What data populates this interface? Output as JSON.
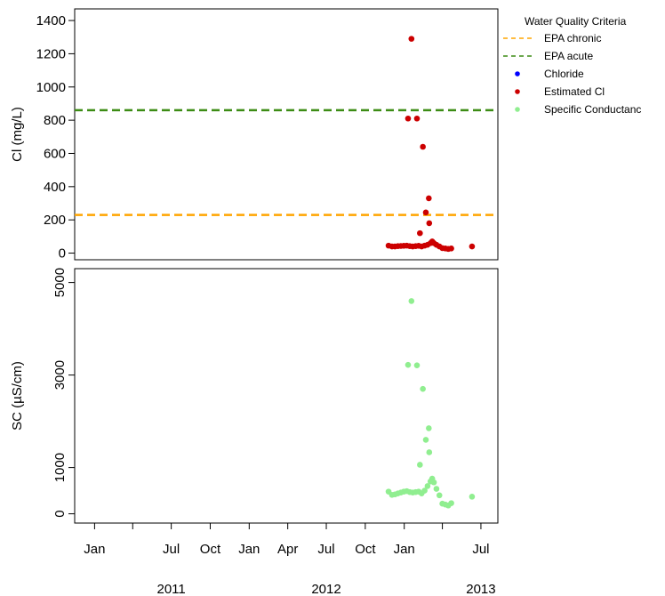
{
  "chart_data": [
    {
      "type": "scatter",
      "ylabel": "Cl (mg/L)",
      "ylim": [
        -40,
        1470
      ],
      "yticks": [
        0,
        200,
        400,
        600,
        800,
        1000,
        1200,
        1400
      ],
      "reference_lines": [
        {
          "name": "EPA chronic",
          "value": 230,
          "color": "#FFA500",
          "style": "dashed"
        },
        {
          "name": "EPA acute",
          "value": 860,
          "color": "#3C8C14",
          "style": "dashed"
        }
      ],
      "series": [
        {
          "name": "Estimated Cl",
          "color": "#CC0000",
          "points": [
            [
              "2012-11-25",
              45
            ],
            [
              "2012-12-03",
              40
            ],
            [
              "2012-12-10",
              40
            ],
            [
              "2012-12-17",
              42
            ],
            [
              "2012-12-24",
              43
            ],
            [
              "2012-12-31",
              44
            ],
            [
              "2013-01-07",
              45
            ],
            [
              "2013-01-14",
              42
            ],
            [
              "2013-01-21",
              40
            ],
            [
              "2013-01-28",
              42
            ],
            [
              "2013-02-04",
              44
            ],
            [
              "2013-02-11",
              40
            ],
            [
              "2013-02-18",
              45
            ],
            [
              "2013-02-25",
              50
            ],
            [
              "2013-03-04",
              60
            ],
            [
              "2013-03-08",
              70
            ],
            [
              "2013-03-12",
              60
            ],
            [
              "2013-03-18",
              50
            ],
            [
              "2013-03-25",
              40
            ],
            [
              "2013-04-01",
              30
            ],
            [
              "2013-04-08",
              28
            ],
            [
              "2013-04-15",
              25
            ],
            [
              "2013-04-22",
              28
            ],
            [
              "2013-06-10",
              40
            ],
            [
              "2013-01-10",
              810
            ],
            [
              "2013-01-18",
              1290
            ],
            [
              "2013-01-31",
              810
            ],
            [
              "2013-02-14",
              640
            ],
            [
              "2013-02-21",
              245
            ],
            [
              "2013-02-28",
              330
            ],
            [
              "2013-03-01",
              180
            ],
            [
              "2013-02-07",
              120
            ]
          ]
        }
      ]
    },
    {
      "type": "scatter",
      "ylabel": "SC (µS/cm)",
      "ylim": [
        -200,
        5300
      ],
      "yticks": [
        0,
        1000,
        3000,
        5000
      ],
      "series": [
        {
          "name": "Specific Conductance",
          "color": "#90EE90",
          "points": [
            [
              "2012-11-25",
              480
            ],
            [
              "2012-12-03",
              410
            ],
            [
              "2012-12-10",
              420
            ],
            [
              "2012-12-17",
              440
            ],
            [
              "2012-12-24",
              460
            ],
            [
              "2012-12-31",
              480
            ],
            [
              "2013-01-07",
              490
            ],
            [
              "2013-01-14",
              470
            ],
            [
              "2013-01-21",
              460
            ],
            [
              "2013-01-28",
              470
            ],
            [
              "2013-02-04",
              480
            ],
            [
              "2013-02-11",
              440
            ],
            [
              "2013-02-18",
              500
            ],
            [
              "2013-02-25",
              600
            ],
            [
              "2013-03-04",
              700
            ],
            [
              "2013-03-08",
              760
            ],
            [
              "2013-03-12",
              680
            ],
            [
              "2013-03-18",
              540
            ],
            [
              "2013-03-25",
              400
            ],
            [
              "2013-04-01",
              220
            ],
            [
              "2013-04-08",
              200
            ],
            [
              "2013-04-15",
              180
            ],
            [
              "2013-04-22",
              230
            ],
            [
              "2013-06-10",
              370
            ],
            [
              "2013-01-10",
              3220
            ],
            [
              "2013-01-18",
              4600
            ],
            [
              "2013-01-31",
              3210
            ],
            [
              "2013-02-14",
              2700
            ],
            [
              "2013-02-21",
              1600
            ],
            [
              "2013-02-28",
              1850
            ],
            [
              "2013-03-01",
              1330
            ],
            [
              "2013-02-07",
              1060
            ]
          ]
        }
      ]
    }
  ],
  "x_axis": {
    "range": [
      "2010-11-15",
      "2013-08-10"
    ],
    "month_ticks": [
      {
        "date": "2011-01-01",
        "label": "Jan"
      },
      {
        "date": "2011-04-01",
        "label": ""
      },
      {
        "date": "2011-07-01",
        "label": "Jul"
      },
      {
        "date": "2011-10-01",
        "label": "Oct"
      },
      {
        "date": "2012-01-01",
        "label": "Jan"
      },
      {
        "date": "2012-04-01",
        "label": "Apr"
      },
      {
        "date": "2012-07-01",
        "label": "Jul"
      },
      {
        "date": "2012-10-01",
        "label": "Oct"
      },
      {
        "date": "2013-01-01",
        "label": "Jan"
      },
      {
        "date": "2013-04-01",
        "label": ""
      },
      {
        "date": "2013-07-01",
        "label": "Jul"
      }
    ],
    "year_labels": [
      {
        "date": "2011-07-01",
        "label": "2011"
      },
      {
        "date": "2012-07-01",
        "label": "2012"
      },
      {
        "date": "2013-07-01",
        "label": "2013"
      }
    ]
  },
  "legend": {
    "title": "Water Quality Criteria",
    "placement": "right",
    "entries": [
      {
        "label": "EPA chronic",
        "kind": "dash",
        "color": "#FFA500"
      },
      {
        "label": "EPA acute",
        "kind": "dash",
        "color": "#3C8C14"
      },
      {
        "label": "Chloride",
        "kind": "dot",
        "color": "#0000FF"
      },
      {
        "label": "Estimated Cl",
        "kind": "dot",
        "color": "#CC0000"
      },
      {
        "label": "Specific Conductanc",
        "kind": "dot",
        "color": "#90EE90"
      }
    ]
  }
}
